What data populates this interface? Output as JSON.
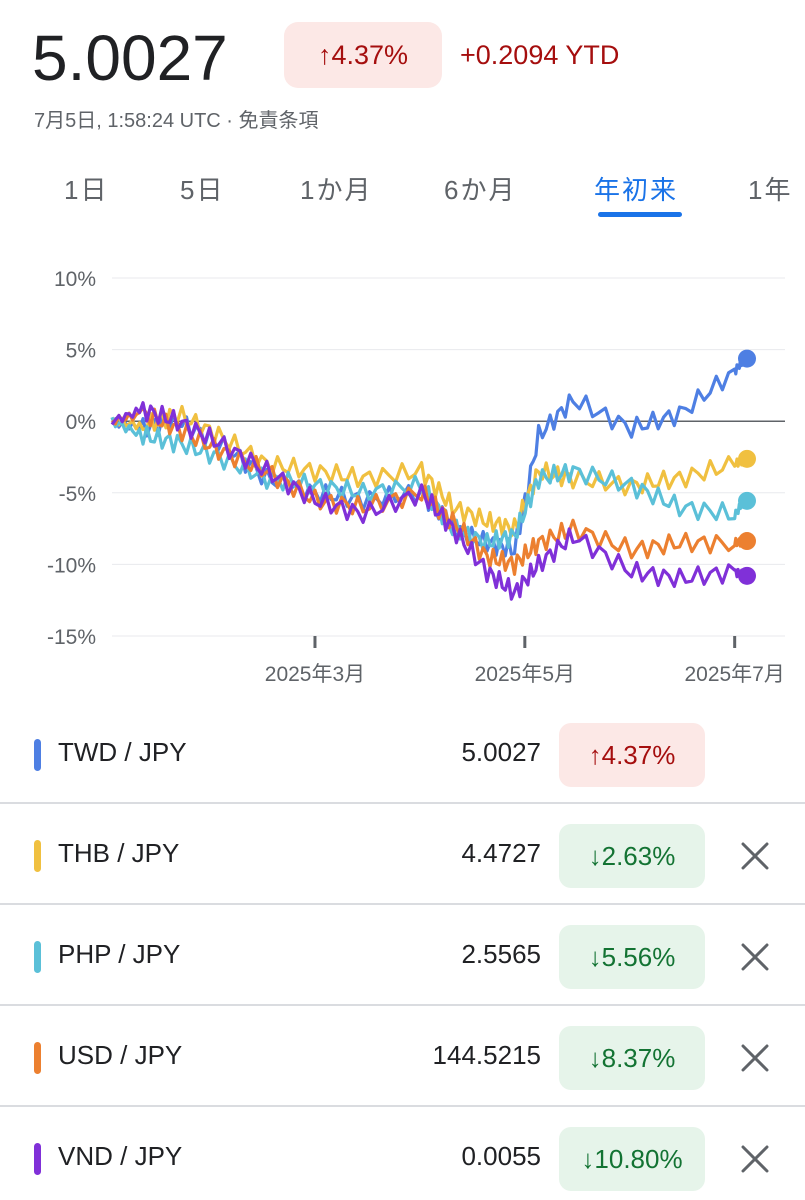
{
  "header": {
    "price": "5.0027",
    "change_pct": "↑4.37%",
    "ytd": "+0.2094 YTD",
    "timestamp": "7月5日, 1:58:24 UTC · 免責条項"
  },
  "tabs": [
    {
      "label": "1日",
      "active": false
    },
    {
      "label": "5日",
      "active": false
    },
    {
      "label": "1か月",
      "active": false
    },
    {
      "label": "6か月",
      "active": false
    },
    {
      "label": "年初来",
      "active": true
    },
    {
      "label": "1年",
      "active": false
    }
  ],
  "chart_data": {
    "type": "line",
    "ylim": [
      -15,
      10
    ],
    "y_ticks": [
      "10%",
      "5%",
      "0%",
      "-5%",
      "-10%",
      "-15%"
    ],
    "x_ticks": [
      "2025年3月",
      "2025年5月",
      "2025年7月"
    ],
    "grid": true,
    "series": [
      {
        "name": "TWD / JPY",
        "color": "#4e7fe3",
        "x": [
          "2025-01-01",
          "2025-01-10",
          "2025-01-20",
          "2025-02-01",
          "2025-02-15",
          "2025-03-01",
          "2025-03-15",
          "2025-04-01",
          "2025-04-10",
          "2025-04-20",
          "2025-04-28",
          "2025-05-05",
          "2025-05-15",
          "2025-06-01",
          "2025-06-15",
          "2025-07-01",
          "2025-07-04"
        ],
        "values": [
          0,
          -0.5,
          0,
          -1.5,
          -4,
          -5,
          -5.5,
          -5,
          -7.5,
          -8.5,
          -9,
          -1,
          1.5,
          -0.5,
          0.5,
          3.5,
          4.37
        ]
      },
      {
        "name": "THB / JPY",
        "color": "#f0c040",
        "x": [
          "2025-01-01",
          "2025-01-10",
          "2025-01-20",
          "2025-02-01",
          "2025-02-15",
          "2025-03-01",
          "2025-03-15",
          "2025-04-01",
          "2025-04-10",
          "2025-04-20",
          "2025-04-28",
          "2025-05-05",
          "2025-05-15",
          "2025-06-01",
          "2025-06-15",
          "2025-07-01",
          "2025-07-04"
        ],
        "values": [
          0,
          -0.3,
          0.5,
          -1,
          -3,
          -3.5,
          -4,
          -3.5,
          -6,
          -7,
          -7.5,
          -3.5,
          -4,
          -4.5,
          -4,
          -3,
          -2.63
        ]
      },
      {
        "name": "PHP / JPY",
        "color": "#5bc0d8",
        "x": [
          "2025-01-01",
          "2025-01-10",
          "2025-01-20",
          "2025-02-01",
          "2025-02-15",
          "2025-03-01",
          "2025-03-15",
          "2025-04-01",
          "2025-04-10",
          "2025-04-20",
          "2025-04-28",
          "2025-05-05",
          "2025-05-15",
          "2025-06-01",
          "2025-06-15",
          "2025-07-01",
          "2025-07-04"
        ],
        "values": [
          0,
          -1,
          -1.5,
          -2.5,
          -4,
          -4.5,
          -5,
          -4.5,
          -7.5,
          -8.5,
          -8,
          -4,
          -3.5,
          -4.5,
          -6,
          -6.5,
          -5.56
        ]
      },
      {
        "name": "USD / JPY",
        "color": "#ec8030",
        "x": [
          "2025-01-01",
          "2025-01-10",
          "2025-01-20",
          "2025-02-01",
          "2025-02-15",
          "2025-03-01",
          "2025-03-15",
          "2025-04-01",
          "2025-04-10",
          "2025-04-20",
          "2025-04-28",
          "2025-05-05",
          "2025-05-15",
          "2025-06-01",
          "2025-06-15",
          "2025-07-01",
          "2025-07-04"
        ],
        "values": [
          0,
          0.5,
          -0.5,
          -2,
          -3.5,
          -5.5,
          -6,
          -5,
          -7,
          -9.5,
          -10,
          -8.5,
          -7.5,
          -9,
          -8.5,
          -8.5,
          -8.37
        ]
      },
      {
        "name": "VND / JPY",
        "color": "#8030d8",
        "x": [
          "2025-01-01",
          "2025-01-10",
          "2025-01-20",
          "2025-02-01",
          "2025-02-15",
          "2025-03-01",
          "2025-03-15",
          "2025-04-01",
          "2025-04-10",
          "2025-04-20",
          "2025-04-28",
          "2025-05-05",
          "2025-05-15",
          "2025-06-01",
          "2025-06-15",
          "2025-07-01",
          "2025-07-04"
        ],
        "values": [
          0,
          0.8,
          0,
          -1.5,
          -3.5,
          -5.5,
          -6.5,
          -5,
          -7.5,
          -10.5,
          -12,
          -10,
          -8,
          -10.5,
          -11,
          -10.5,
          -10.8
        ]
      }
    ]
  },
  "rows": [
    {
      "pair": "TWD / JPY",
      "rate": "5.0027",
      "change": "↑4.37%",
      "direction": "up",
      "color": "#4e7fe3",
      "removable": false
    },
    {
      "pair": "THB / JPY",
      "rate": "4.4727",
      "change": "↓2.63%",
      "direction": "down",
      "color": "#f0c040",
      "removable": true
    },
    {
      "pair": "PHP / JPY",
      "rate": "2.5565",
      "change": "↓5.56%",
      "direction": "down",
      "color": "#5bc0d8",
      "removable": true
    },
    {
      "pair": "USD / JPY",
      "rate": "144.5215",
      "change": "↓8.37%",
      "direction": "down",
      "color": "#ec8030",
      "removable": true
    },
    {
      "pair": "VND / JPY",
      "rate": "0.0055",
      "change": "↓10.80%",
      "direction": "down",
      "color": "#8030d8",
      "removable": true
    }
  ],
  "icons": {
    "remove": "close-icon"
  }
}
